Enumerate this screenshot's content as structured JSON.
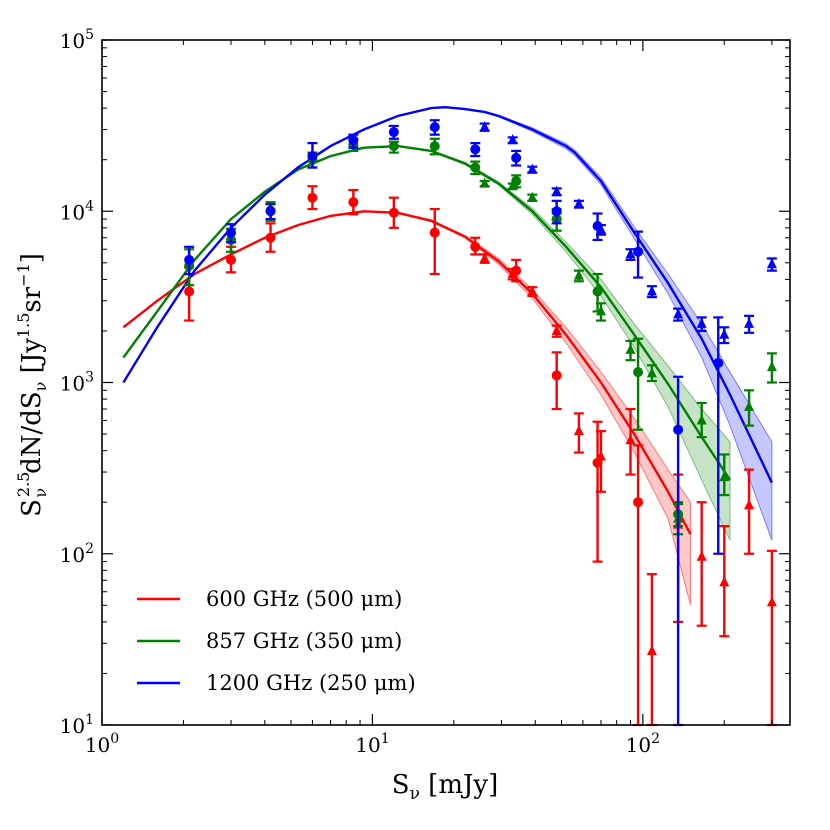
{
  "chart_data": {
    "type": "scatter",
    "xscale": "log",
    "yscale": "log",
    "xlim": [
      1,
      350
    ],
    "ylim": [
      10,
      100000
    ],
    "xlabel_base": "S",
    "xlabel_sub": "ν",
    "xlabel_unit": " [mJy]",
    "ylabel_text": "S",
    "ylabel_sub": "ν",
    "ylabel_sup": "2.5",
    "ylabel_mid": "dN/dS",
    "ylabel_unit_open": " [Jy",
    "ylabel_unit_sup": "1.5",
    "ylabel_unit_mid": "sr",
    "ylabel_unit_sup2": "−1",
    "ylabel_unit_close": "]",
    "xticks": [
      {
        "value": 1,
        "base": "10",
        "exp": "0"
      },
      {
        "value": 10,
        "base": "10",
        "exp": "1"
      },
      {
        "value": 100,
        "base": "10",
        "exp": "2"
      }
    ],
    "yticks": [
      {
        "value": 10,
        "base": "10",
        "exp": "1"
      },
      {
        "value": 100,
        "base": "10",
        "exp": "2"
      },
      {
        "value": 1000,
        "base": "10",
        "exp": "3"
      },
      {
        "value": 10000,
        "base": "10",
        "exp": "4"
      },
      {
        "value": 100000,
        "base": "10",
        "exp": "5"
      }
    ],
    "legend_position": "lower-left",
    "series": [
      {
        "name": "600 GHz (500 μm)",
        "color": "#ff0000",
        "model": {
          "x": [
            1.2,
            1.6,
            2.2,
            3.0,
            4.0,
            5.3,
            7.0,
            9.3,
            12.4,
            16.5,
            22.0,
            29.3,
            39,
            52,
            70,
            93,
            124,
            150
          ],
          "y": [
            2100,
            3000,
            4300,
            5600,
            7000,
            8300,
            9400,
            10000,
            9800,
            8800,
            7100,
            5100,
            3300,
            1900,
            1000,
            500,
            230,
            130
          ],
          "band_low": [
            2100,
            3000,
            4300,
            5600,
            7000,
            8300,
            9400,
            10000,
            9800,
            8700,
            7000,
            4900,
            3100,
            1700,
            850,
            390,
            160,
            50
          ],
          "band_high": [
            2100,
            3000,
            4300,
            5600,
            7000,
            8300,
            9400,
            10000,
            9800,
            8900,
            7200,
            5300,
            3500,
            2100,
            1150,
            620,
            310,
            200
          ]
        },
        "circles": [
          {
            "x": 2.1,
            "y": 3400,
            "lo": 2300,
            "hi": 4700
          },
          {
            "x": 3.0,
            "y": 5200,
            "lo": 4400,
            "hi": 6200
          },
          {
            "x": 4.2,
            "y": 7000,
            "lo": 5800,
            "hi": 8500
          },
          {
            "x": 6.0,
            "y": 12000,
            "lo": 10300,
            "hi": 14000
          },
          {
            "x": 8.5,
            "y": 11300,
            "lo": 9600,
            "hi": 13300
          },
          {
            "x": 12.0,
            "y": 9800,
            "lo": 8000,
            "hi": 12000
          },
          {
            "x": 17.0,
            "y": 7500,
            "lo": 4300,
            "hi": 10300
          },
          {
            "x": 24.0,
            "y": 6200,
            "lo": 5600,
            "hi": 7000
          },
          {
            "x": 34.0,
            "y": 4500,
            "lo": 3900,
            "hi": 5200
          },
          {
            "x": 48.0,
            "y": 1100,
            "lo": 700,
            "hi": 1500
          },
          {
            "x": 68.0,
            "y": 340,
            "lo": 90,
            "hi": 590
          },
          {
            "x": 96.0,
            "y": 200,
            "lo": 10,
            "hi": 430
          }
        ],
        "triangles": [
          {
            "x": 26.0,
            "y": 5300,
            "lo": 5000,
            "hi": 5600
          },
          {
            "x": 33.0,
            "y": 4300,
            "lo": 4000,
            "hi": 4600
          },
          {
            "x": 39.0,
            "y": 3400,
            "lo": 3200,
            "hi": 3600
          },
          {
            "x": 48.0,
            "y": 2000,
            "lo": 1850,
            "hi": 2150
          },
          {
            "x": 58.0,
            "y": 520,
            "lo": 390,
            "hi": 660
          },
          {
            "x": 70.0,
            "y": 370,
            "lo": 230,
            "hi": 520
          },
          {
            "x": 90.0,
            "y": 460,
            "lo": 290,
            "hi": 700
          },
          {
            "x": 108.0,
            "y": 27,
            "lo": 10,
            "hi": 76
          },
          {
            "x": 135.0,
            "y": 148,
            "lo": 40,
            "hi": 290
          },
          {
            "x": 165.0,
            "y": 96,
            "lo": 38,
            "hi": 200
          },
          {
            "x": 200.0,
            "y": 68,
            "lo": 33,
            "hi": 145
          },
          {
            "x": 247.0,
            "y": 192,
            "lo": 100,
            "hi": 310
          },
          {
            "x": 300.0,
            "y": 52,
            "lo": 10,
            "hi": 104
          }
        ]
      },
      {
        "name": "857 GHz (350 μm)",
        "color": "#008000",
        "model": {
          "x": [
            1.2,
            1.6,
            2.2,
            3.0,
            4.0,
            5.3,
            7.0,
            9.3,
            12.4,
            16.5,
            22.0,
            29.3,
            39,
            52,
            70,
            93,
            124,
            165,
            210
          ],
          "y": [
            1400,
            2600,
            5200,
            9000,
            13000,
            17500,
            21000,
            23500,
            24000,
            22500,
            19000,
            14500,
            10000,
            6200,
            3600,
            1900,
            980,
            480,
            270
          ],
          "band_low": [
            1400,
            2600,
            5200,
            9000,
            13000,
            17500,
            21000,
            23500,
            24000,
            22300,
            18700,
            14200,
            9600,
            5800,
            3200,
            1600,
            720,
            270,
            120
          ],
          "band_high": [
            1400,
            2600,
            5200,
            9000,
            13000,
            17500,
            21000,
            23500,
            24000,
            22700,
            19300,
            14800,
            10400,
            6600,
            4000,
            2200,
            1250,
            700,
            450
          ]
        },
        "circles": [
          {
            "x": 2.1,
            "y": 4800,
            "lo": 3700,
            "hi": 6000
          },
          {
            "x": 3.0,
            "y": 6800,
            "lo": 5800,
            "hi": 7900
          },
          {
            "x": 4.2,
            "y": 10100,
            "lo": 8800,
            "hi": 11300
          },
          {
            "x": 6.0,
            "y": 20000,
            "lo": 18000,
            "hi": 22000
          },
          {
            "x": 8.5,
            "y": 24500,
            "lo": 22500,
            "hi": 26500
          },
          {
            "x": 12.0,
            "y": 24000,
            "lo": 22000,
            "hi": 25500
          },
          {
            "x": 17.0,
            "y": 24000,
            "lo": 21500,
            "hi": 26500
          },
          {
            "x": 24.0,
            "y": 18000,
            "lo": 16500,
            "hi": 19500
          },
          {
            "x": 34.0,
            "y": 15000,
            "lo": 13800,
            "hi": 16200
          },
          {
            "x": 48.0,
            "y": 9000,
            "lo": 7700,
            "hi": 10300
          },
          {
            "x": 68.0,
            "y": 3400,
            "lo": 2600,
            "hi": 4300
          },
          {
            "x": 96.0,
            "y": 1150,
            "lo": 530,
            "hi": 1800
          },
          {
            "x": 135.0,
            "y": 170,
            "lo": 145,
            "hi": 200
          }
        ],
        "triangles": [
          {
            "x": 26.0,
            "y": 14500,
            "lo": 14000,
            "hi": 15000
          },
          {
            "x": 33.0,
            "y": 14000,
            "lo": 13500,
            "hi": 14500
          },
          {
            "x": 39.0,
            "y": 12000,
            "lo": 11500,
            "hi": 12500
          },
          {
            "x": 48.0,
            "y": 9300,
            "lo": 8900,
            "hi": 9700
          },
          {
            "x": 58.0,
            "y": 4200,
            "lo": 3900,
            "hi": 4500
          },
          {
            "x": 70.0,
            "y": 2600,
            "lo": 2300,
            "hi": 2900
          },
          {
            "x": 90.0,
            "y": 1550,
            "lo": 1350,
            "hi": 1750
          },
          {
            "x": 108.0,
            "y": 1130,
            "lo": 1020,
            "hi": 1260
          },
          {
            "x": 135.0,
            "y": 160,
            "lo": 130,
            "hi": 195
          },
          {
            "x": 165.0,
            "y": 600,
            "lo": 480,
            "hi": 760
          },
          {
            "x": 200.0,
            "y": 280,
            "lo": 220,
            "hi": 380
          },
          {
            "x": 247.0,
            "y": 720,
            "lo": 560,
            "hi": 900
          },
          {
            "x": 300.0,
            "y": 1230,
            "lo": 1000,
            "hi": 1480
          }
        ]
      },
      {
        "name": "1200 GHz (250 μm)",
        "color": "#0000ff",
        "model": {
          "x": [
            1.2,
            1.6,
            2.2,
            3.0,
            4.0,
            5.3,
            7.0,
            9.3,
            12.4,
            16.5,
            18.6,
            22.0,
            26,
            29.3,
            39,
            52,
            56,
            70,
            93,
            124,
            165,
            210,
            300
          ],
          "y": [
            1000,
            2100,
            4500,
            8000,
            12500,
            18000,
            24000,
            30000,
            36000,
            40000,
            40500,
            39500,
            38000,
            36000,
            30000,
            24000,
            22000,
            15000,
            7500,
            3800,
            1800,
            850,
            260
          ],
          "band_low": [
            1000,
            2100,
            4500,
            8000,
            12500,
            18000,
            24000,
            30000,
            36000,
            39800,
            40300,
            39200,
            37600,
            35600,
            29300,
            23200,
            21200,
            14300,
            6900,
            3300,
            1400,
            560,
            120
          ],
          "band_high": [
            1000,
            2100,
            4500,
            8000,
            12500,
            18000,
            24000,
            30000,
            36000,
            40200,
            40700,
            39800,
            38400,
            36400,
            30700,
            24800,
            22800,
            15700,
            8100,
            4300,
            2200,
            1150,
            450
          ]
        },
        "circles": [
          {
            "x": 2.1,
            "y": 5200,
            "lo": 4300,
            "hi": 6200
          },
          {
            "x": 3.0,
            "y": 7500,
            "lo": 6600,
            "hi": 8400
          },
          {
            "x": 4.2,
            "y": 10000,
            "lo": 9000,
            "hi": 11000
          },
          {
            "x": 6.0,
            "y": 21000,
            "lo": 18000,
            "hi": 25000
          },
          {
            "x": 8.5,
            "y": 26000,
            "lo": 23500,
            "hi": 28000
          },
          {
            "x": 12.0,
            "y": 29000,
            "lo": 26500,
            "hi": 31500
          },
          {
            "x": 17.0,
            "y": 31000,
            "lo": 28000,
            "hi": 34000
          },
          {
            "x": 24.0,
            "y": 23000,
            "lo": 21000,
            "hi": 25000
          },
          {
            "x": 34.0,
            "y": 20500,
            "lo": 18500,
            "hi": 22500
          },
          {
            "x": 48.0,
            "y": 10000,
            "lo": 8500,
            "hi": 11500
          },
          {
            "x": 68.0,
            "y": 8200,
            "lo": 6800,
            "hi": 9700
          },
          {
            "x": 96.0,
            "y": 5800,
            "lo": 4100,
            "hi": 7600
          },
          {
            "x": 135.0,
            "y": 530,
            "lo": 10,
            "hi": 1080
          },
          {
            "x": 190.0,
            "y": 1300,
            "lo": 100,
            "hi": 2400
          }
        ],
        "triangles": [
          {
            "x": 26.0,
            "y": 31000,
            "lo": 29500,
            "hi": 32500
          },
          {
            "x": 33.0,
            "y": 26000,
            "lo": 25000,
            "hi": 27000
          },
          {
            "x": 39.0,
            "y": 17500,
            "lo": 16800,
            "hi": 18200
          },
          {
            "x": 48.0,
            "y": 13000,
            "lo": 12400,
            "hi": 13600
          },
          {
            "x": 58.0,
            "y": 11000,
            "lo": 10500,
            "hi": 11500
          },
          {
            "x": 70.0,
            "y": 7800,
            "lo": 7300,
            "hi": 8300
          },
          {
            "x": 90.0,
            "y": 5600,
            "lo": 5200,
            "hi": 6000
          },
          {
            "x": 108.0,
            "y": 3400,
            "lo": 3150,
            "hi": 3650
          },
          {
            "x": 135.0,
            "y": 2500,
            "lo": 2300,
            "hi": 2700
          },
          {
            "x": 165.0,
            "y": 2200,
            "lo": 2000,
            "hi": 2400
          },
          {
            "x": 200.0,
            "y": 1900,
            "lo": 1700,
            "hi": 2100
          },
          {
            "x": 247.0,
            "y": 2200,
            "lo": 1950,
            "hi": 2450
          },
          {
            "x": 300.0,
            "y": 4900,
            "lo": 4500,
            "hi": 5300
          }
        ]
      }
    ]
  }
}
